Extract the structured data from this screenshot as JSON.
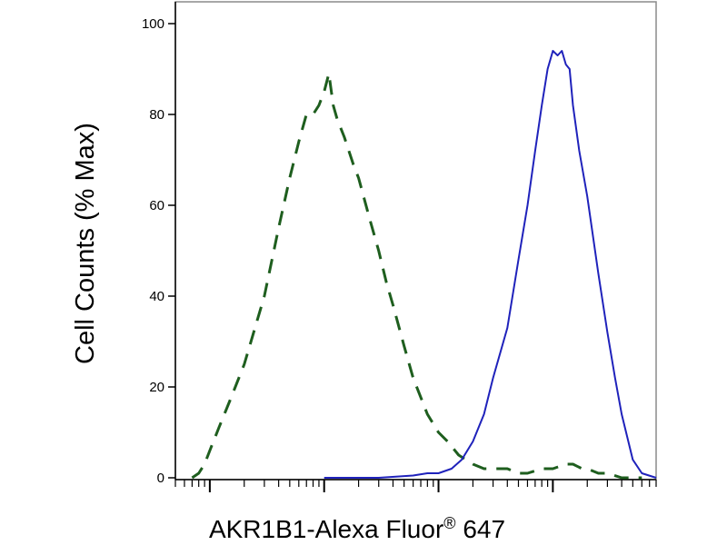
{
  "chart_data": {
    "type": "line",
    "title": "",
    "xlabel_main": "AKR1B1-Alexa Fluor",
    "xlabel_sup": "®",
    "xlabel_tail": " 647",
    "ylabel": "Cell Counts (% Max)",
    "ylim": [
      0,
      100
    ],
    "y_ticks": [
      "0",
      "20",
      "40",
      "60",
      "80",
      "100"
    ],
    "x_scale": "log",
    "xlim": [
      0.5,
      8000
    ],
    "grid": false,
    "legend": "none",
    "series": [
      {
        "style": "dashed",
        "color": "#1e5e1e",
        "x": [
          0.7,
          0.8,
          0.9,
          1.0,
          1.2,
          1.5,
          2,
          3,
          4,
          5,
          6,
          7,
          8,
          9,
          10,
          11,
          12,
          13,
          15,
          18,
          20,
          25,
          30,
          35,
          40,
          50,
          60,
          80,
          100,
          120,
          150,
          200,
          250,
          300,
          400,
          500,
          600,
          800,
          1000,
          1300,
          1500,
          1800,
          2000,
          2500,
          3000,
          4000,
          5000,
          6000
        ],
        "y": [
          0,
          1,
          3,
          6,
          11,
          17,
          25,
          40,
          55,
          66,
          74,
          80,
          80,
          82,
          85,
          89,
          82,
          79,
          75,
          69,
          66,
          57,
          50,
          43,
          38,
          29,
          22,
          14,
          10,
          8,
          5,
          3,
          2,
          2,
          2,
          1,
          1,
          2,
          2,
          3,
          3,
          2,
          2,
          1,
          1,
          0,
          0,
          0
        ]
      },
      {
        "style": "solid",
        "color": "#1f22bb",
        "x": [
          10,
          30,
          60,
          80,
          100,
          130,
          160,
          200,
          250,
          300,
          400,
          500,
          600,
          700,
          800,
          900,
          1000,
          1100,
          1200,
          1300,
          1400,
          1500,
          1700,
          2000,
          2500,
          3000,
          3500,
          4000,
          5000,
          6000,
          8000
        ],
        "y": [
          0,
          0,
          0.5,
          1,
          1,
          2,
          4,
          8,
          14,
          22,
          33,
          48,
          60,
          72,
          82,
          90,
          94,
          93,
          94,
          91,
          90,
          82,
          72,
          62,
          45,
          32,
          22,
          14,
          4,
          1,
          0
        ]
      }
    ]
  }
}
